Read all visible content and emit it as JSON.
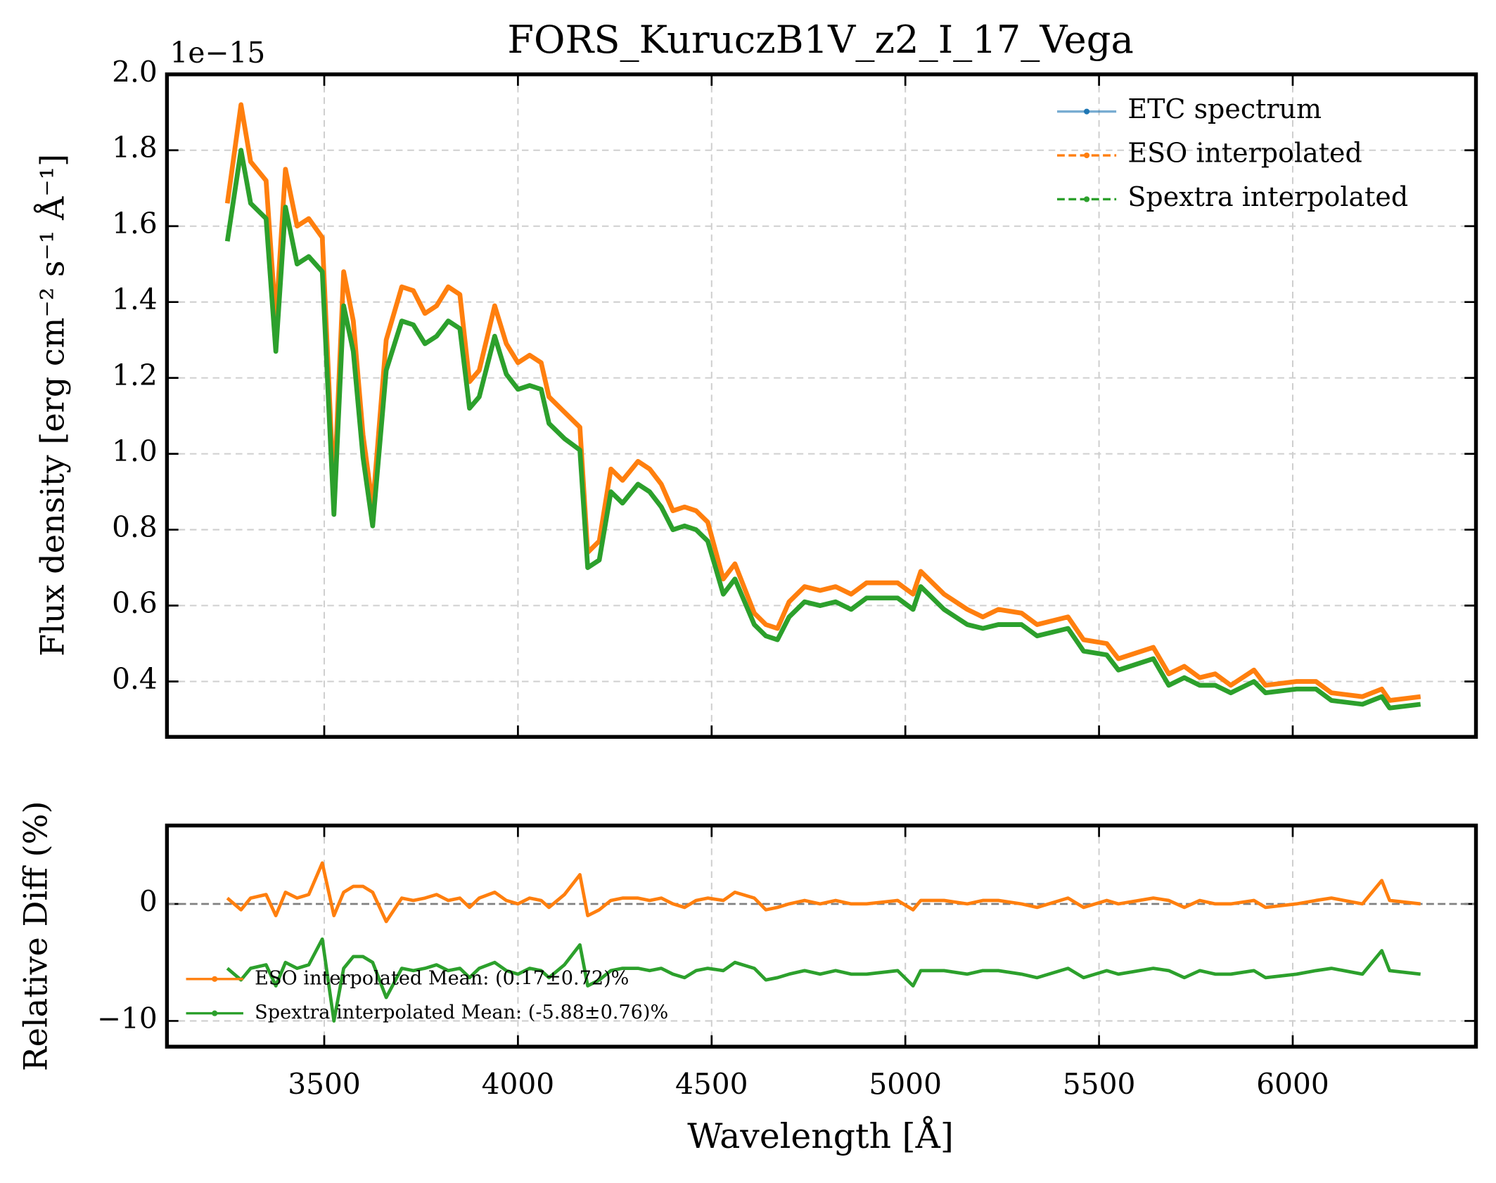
{
  "chart_data": [
    {
      "type": "line",
      "title": "FORS_KuruczB1V_z2_I_17_Vega",
      "offset_text": "1e−15",
      "y_label": "Flux density [erg cm⁻² s⁻¹ Å⁻¹]",
      "xlim": [
        3094,
        6473
      ],
      "xticks": [
        3500,
        4000,
        4500,
        5000,
        5500,
        6000
      ],
      "ylim": [
        0.254,
        2.0
      ],
      "yticks": [
        0.4,
        0.6,
        0.8,
        {
          "value": 1,
          "label": "1.0"
        },
        1.2,
        1.4,
        1.6,
        1.8,
        {
          "value": 2,
          "label": "2.0"
        }
      ],
      "grid": true,
      "legend": "upper right",
      "x": [
        3250,
        3285,
        3310,
        3350,
        3375,
        3400,
        3430,
        3460,
        3495,
        3525,
        3550,
        3575,
        3600,
        3625,
        3660,
        3700,
        3730,
        3760,
        3790,
        3820,
        3850,
        3875,
        3900,
        3940,
        3970,
        4000,
        4030,
        4060,
        4080,
        4120,
        4160,
        4180,
        4210,
        4240,
        4270,
        4310,
        4340,
        4370,
        4400,
        4430,
        4460,
        4490,
        4530,
        4560,
        4610,
        4640,
        4670,
        4700,
        4740,
        4780,
        4820,
        4860,
        4900,
        4980,
        5020,
        5040,
        5100,
        5160,
        5200,
        5240,
        5300,
        5340,
        5420,
        5460,
        5520,
        5550,
        5640,
        5680,
        5720,
        5760,
        5800,
        5840,
        5900,
        5930,
        6010,
        6060,
        6100,
        6180,
        6230,
        6250,
        6330
      ],
      "series": [
        {
          "name": "ETC spectrum",
          "color": "#1f77b4",
          "values": [
            1.66,
            1.92,
            1.77,
            1.72,
            1.35,
            1.75,
            1.6,
            1.62,
            1.57,
            0.89,
            1.48,
            1.35,
            1.05,
            0.86,
            1.3,
            1.44,
            1.43,
            1.37,
            1.39,
            1.44,
            1.42,
            1.19,
            1.22,
            1.39,
            1.29,
            1.24,
            1.26,
            1.24,
            1.15,
            1.11,
            1.07,
            0.74,
            0.77,
            0.96,
            0.93,
            0.98,
            0.96,
            0.92,
            0.85,
            0.86,
            0.85,
            0.82,
            0.67,
            0.71,
            0.58,
            0.55,
            0.54,
            0.61,
            0.65,
            0.64,
            0.65,
            0.63,
            0.66,
            0.66,
            0.63,
            0.69,
            0.63,
            0.59,
            0.57,
            0.59,
            0.58,
            0.55,
            0.57,
            0.51,
            0.5,
            0.46,
            0.49,
            0.42,
            0.44,
            0.41,
            0.42,
            0.39,
            0.43,
            0.39,
            0.4,
            0.4,
            0.37,
            0.36,
            0.38,
            0.35,
            0.36
          ]
        },
        {
          "name": "ESO interpolated",
          "color": "#ff7f0e",
          "values": [
            1.66,
            1.92,
            1.77,
            1.72,
            1.35,
            1.75,
            1.6,
            1.62,
            1.57,
            0.89,
            1.48,
            1.35,
            1.05,
            0.86,
            1.3,
            1.44,
            1.43,
            1.37,
            1.39,
            1.44,
            1.42,
            1.19,
            1.22,
            1.39,
            1.29,
            1.24,
            1.26,
            1.24,
            1.15,
            1.11,
            1.07,
            0.74,
            0.77,
            0.96,
            0.93,
            0.98,
            0.96,
            0.92,
            0.85,
            0.86,
            0.85,
            0.82,
            0.67,
            0.71,
            0.58,
            0.55,
            0.54,
            0.61,
            0.65,
            0.64,
            0.65,
            0.63,
            0.66,
            0.66,
            0.63,
            0.69,
            0.63,
            0.59,
            0.57,
            0.59,
            0.58,
            0.55,
            0.57,
            0.51,
            0.5,
            0.46,
            0.49,
            0.42,
            0.44,
            0.41,
            0.42,
            0.39,
            0.43,
            0.39,
            0.4,
            0.4,
            0.37,
            0.36,
            0.38,
            0.35,
            0.36
          ]
        },
        {
          "name": "Spextra interpolated",
          "color": "#2ca02c",
          "values": [
            1.56,
            1.8,
            1.66,
            1.62,
            1.27,
            1.65,
            1.5,
            1.52,
            1.48,
            0.84,
            1.39,
            1.27,
            0.99,
            0.81,
            1.22,
            1.35,
            1.34,
            1.29,
            1.31,
            1.35,
            1.33,
            1.12,
            1.15,
            1.31,
            1.21,
            1.17,
            1.18,
            1.17,
            1.08,
            1.04,
            1.01,
            0.7,
            0.72,
            0.9,
            0.87,
            0.92,
            0.9,
            0.86,
            0.8,
            0.81,
            0.8,
            0.77,
            0.63,
            0.67,
            0.55,
            0.52,
            0.51,
            0.57,
            0.61,
            0.6,
            0.61,
            0.59,
            0.62,
            0.62,
            0.59,
            0.65,
            0.59,
            0.55,
            0.54,
            0.55,
            0.55,
            0.52,
            0.54,
            0.48,
            0.47,
            0.43,
            0.46,
            0.39,
            0.41,
            0.39,
            0.39,
            0.37,
            0.4,
            0.37,
            0.38,
            0.38,
            0.35,
            0.34,
            0.36,
            0.33,
            0.34
          ]
        }
      ]
    },
    {
      "type": "line",
      "y_label": "Relative Diff (%)",
      "x_label": "Wavelength [Å]",
      "xlim": [
        3094,
        6473
      ],
      "xticks": [
        3500,
        4000,
        4500,
        5000,
        5500,
        6000
      ],
      "ylim": [
        -12.2,
        6.7
      ],
      "yticks": [
        {
          "value": -10,
          "label": "−10"
        },
        0
      ],
      "grid": true,
      "legend": "lower left",
      "reference_line": 0,
      "x": [
        3250,
        3285,
        3310,
        3350,
        3375,
        3400,
        3430,
        3460,
        3495,
        3525,
        3550,
        3575,
        3600,
        3625,
        3660,
        3700,
        3730,
        3760,
        3790,
        3820,
        3850,
        3875,
        3900,
        3940,
        3970,
        4000,
        4030,
        4060,
        4080,
        4120,
        4160,
        4180,
        4210,
        4240,
        4270,
        4310,
        4340,
        4370,
        4400,
        4430,
        4460,
        4490,
        4530,
        4560,
        4610,
        4640,
        4670,
        4700,
        4740,
        4780,
        4820,
        4860,
        4900,
        4980,
        5020,
        5040,
        5100,
        5160,
        5200,
        5240,
        5300,
        5340,
        5420,
        5460,
        5520,
        5550,
        5640,
        5680,
        5720,
        5760,
        5800,
        5840,
        5900,
        5930,
        6010,
        6060,
        6100,
        6180,
        6230,
        6250,
        6330
      ],
      "series": [
        {
          "name": "ESO interpolated Mean: (0.17±0.72)%",
          "color": "#ff7f0e",
          "values": [
            0.5,
            -0.5,
            0.5,
            0.8,
            -1.0,
            1.0,
            0.5,
            0.8,
            3.5,
            -1.0,
            1.0,
            1.5,
            1.5,
            1.0,
            -1.5,
            0.5,
            0.3,
            0.5,
            0.8,
            0.3,
            0.5,
            -0.3,
            0.5,
            1.0,
            0.3,
            0.0,
            0.5,
            0.3,
            -0.3,
            0.8,
            2.5,
            -1.0,
            -0.5,
            0.3,
            0.5,
            0.5,
            0.3,
            0.5,
            0.0,
            -0.3,
            0.3,
            0.5,
            0.3,
            1.0,
            0.5,
            -0.5,
            -0.3,
            0.0,
            0.3,
            0.0,
            0.3,
            0.0,
            0.0,
            0.3,
            -0.5,
            0.3,
            0.3,
            0.0,
            0.3,
            0.3,
            0.0,
            -0.3,
            0.5,
            -0.3,
            0.3,
            0.0,
            0.5,
            0.3,
            -0.3,
            0.3,
            0.0,
            0.0,
            0.3,
            -0.3,
            0.0,
            0.3,
            0.5,
            0.0,
            2.0,
            0.3,
            0.0
          ]
        },
        {
          "name": "Spextra interpolated Mean: (-5.88±0.76)%",
          "color": "#2ca02c",
          "values": [
            -5.5,
            -6.5,
            -5.5,
            -5.2,
            -7.0,
            -5.0,
            -5.5,
            -5.2,
            -3.0,
            -10.0,
            -5.5,
            -4.5,
            -4.5,
            -5.0,
            -8.0,
            -5.5,
            -5.7,
            -5.5,
            -5.2,
            -5.7,
            -5.5,
            -6.3,
            -5.5,
            -5.0,
            -5.7,
            -6.0,
            -5.5,
            -5.7,
            -6.3,
            -5.2,
            -3.5,
            -7.0,
            -6.5,
            -5.7,
            -5.5,
            -5.5,
            -5.7,
            -5.5,
            -6.0,
            -6.3,
            -5.7,
            -5.5,
            -5.7,
            -5.0,
            -5.5,
            -6.5,
            -6.3,
            -6.0,
            -5.7,
            -6.0,
            -5.7,
            -6.0,
            -6.0,
            -5.7,
            -7.0,
            -5.7,
            -5.7,
            -6.0,
            -5.7,
            -5.7,
            -6.0,
            -6.3,
            -5.5,
            -6.3,
            -5.7,
            -6.0,
            -5.5,
            -5.7,
            -6.3,
            -5.7,
            -6.0,
            -6.0,
            -5.7,
            -6.3,
            -6.0,
            -5.7,
            -5.5,
            -6.0,
            -4.0,
            -5.7,
            -6.0
          ]
        }
      ]
    }
  ]
}
